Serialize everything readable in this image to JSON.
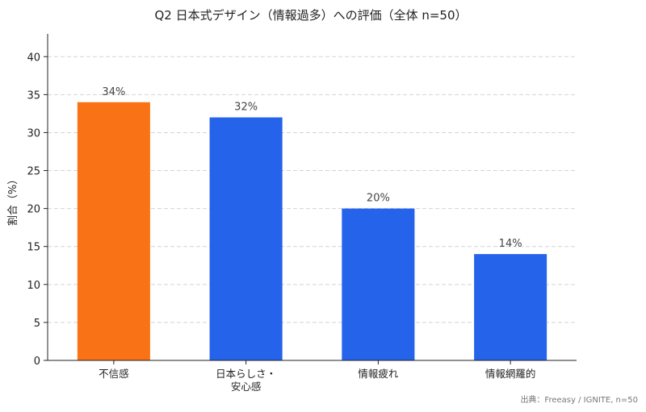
{
  "chart_data": {
    "type": "bar",
    "title": "Q2 日本式デザイン（情報過多）への評価（全体 n=50）",
    "xlabel": "",
    "ylabel": "割合（%）",
    "categories": [
      [
        "不信感"
      ],
      [
        "日本らしさ・",
        "安心感"
      ],
      [
        "情報疲れ"
      ],
      [
        "情報網羅的"
      ]
    ],
    "values": [
      34,
      32,
      20,
      14
    ],
    "value_labels": [
      "34%",
      "32%",
      "20%",
      "14%"
    ],
    "bar_colors": [
      "#f97316",
      "#2563eb",
      "#2563eb",
      "#2563eb"
    ],
    "ylim": [
      0,
      43
    ],
    "yticks": [
      0,
      5,
      10,
      15,
      20,
      25,
      30,
      35,
      40
    ],
    "grid": "horizontal dashed",
    "legend": "none",
    "source_note": "出典：Freeasy / IGNITE, n=50"
  }
}
